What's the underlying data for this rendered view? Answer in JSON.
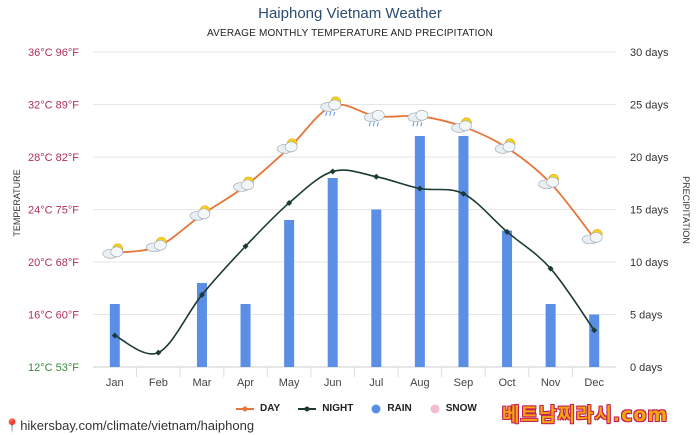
{
  "page": {
    "title": "Haiphong Vietnam Weather",
    "subtitle": "AVERAGE MONTHLY TEMPERATURE AND PRECIPITATION",
    "source": "hikersbay.com/climate/vietnam/haiphong",
    "watermark": "베트남찌라시.com"
  },
  "colors": {
    "day": "#e8763a",
    "night": "#1c3b34",
    "rain": "#5b8fe6",
    "snow": "#f3bcd0",
    "left_axis_text": "#b0305b",
    "bottom_left_tick": "#3a8a3a",
    "right_axis_text": "#333333"
  },
  "chart_data": {
    "type": "line+bar",
    "categories": [
      "Jan",
      "Feb",
      "Mar",
      "Apr",
      "May",
      "Jun",
      "Jul",
      "Aug",
      "Sep",
      "Oct",
      "Nov",
      "Dec"
    ],
    "series": [
      {
        "name": "DAY",
        "type": "line",
        "axis": "temperature",
        "values": [
          20.7,
          21.2,
          23.6,
          25.8,
          28.7,
          31.9,
          31.1,
          31.1,
          30.3,
          28.7,
          26.0,
          21.8
        ]
      },
      {
        "name": "NIGHT",
        "type": "line",
        "axis": "temperature",
        "values": [
          14.4,
          13.1,
          17.5,
          21.2,
          24.5,
          26.9,
          26.5,
          25.6,
          25.2,
          22.3,
          19.5,
          14.8
        ]
      },
      {
        "name": "RAIN",
        "type": "bar",
        "axis": "precipitation",
        "values": [
          6,
          0,
          8,
          6,
          14,
          18,
          15,
          22,
          22,
          13,
          6,
          5
        ]
      },
      {
        "name": "SNOW",
        "type": "bar",
        "axis": "precipitation",
        "values": [
          0,
          0,
          0,
          0,
          0,
          0,
          0,
          0,
          0,
          0,
          0,
          0
        ]
      }
    ],
    "y_left": {
      "label": "TEMPERATURE",
      "range": [
        12,
        36
      ],
      "ticks": [
        "36°C 96°F",
        "32°C 89°F",
        "28°C 82°F",
        "24°C 75°F",
        "20°C 68°F",
        "16°C 60°F",
        "12°C 53°F"
      ],
      "tick_values": [
        36,
        32,
        28,
        24,
        20,
        16,
        12
      ]
    },
    "y_right": {
      "label": "PRECIPITATION",
      "range": [
        0,
        30
      ],
      "ticks": [
        "30 days",
        "25 days",
        "20 days",
        "15 days",
        "10 days",
        "5 days",
        "0 days"
      ],
      "tick_values": [
        30,
        25,
        20,
        15,
        10,
        5,
        0
      ]
    },
    "weather_icons": [
      "sun-cloud",
      "sun-cloud",
      "sun-cloud",
      "sun-cloud",
      "cloud-sun",
      "sun-cloud-rain",
      "cloud-rain",
      "cloud-rain",
      "cloud-sun",
      "cloud-sun",
      "sun-cloud",
      "sun-cloud"
    ],
    "legend": [
      "DAY",
      "NIGHT",
      "RAIN",
      "SNOW"
    ],
    "grid": true
  }
}
